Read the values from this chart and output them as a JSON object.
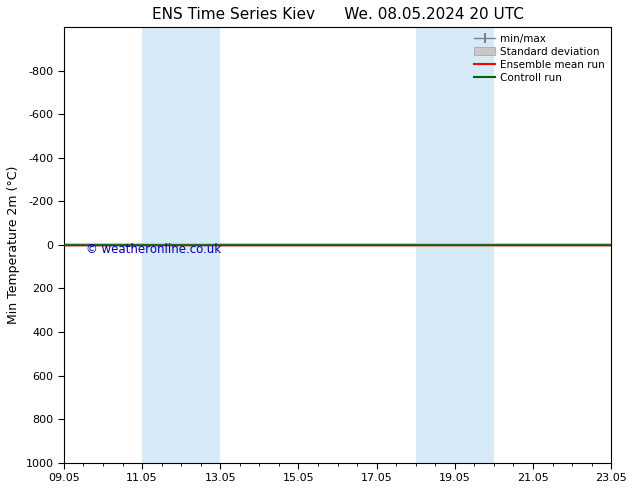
{
  "title1": "ENS Time Series Kiev",
  "title2": "We. 08.05.2024 20 UTC",
  "ylabel": "Min Temperature 2m (°C)",
  "xlim": [
    0,
    14
  ],
  "ylim": [
    1000,
    -1000
  ],
  "yticks": [
    -800,
    -600,
    -400,
    -200,
    0,
    200,
    400,
    600,
    800,
    1000
  ],
  "xtick_labels": [
    "09.05",
    "11.05",
    "13.05",
    "15.05",
    "17.05",
    "19.05",
    "21.05",
    "23.05"
  ],
  "xtick_positions": [
    0,
    2,
    4,
    6,
    8,
    10,
    12,
    14
  ],
  "shaded_bands": [
    [
      2,
      3
    ],
    [
      3,
      4
    ],
    [
      9,
      10
    ],
    [
      10,
      11
    ]
  ],
  "shaded_color": "#d6eaf8",
  "control_run_color": "#006400",
  "ensemble_mean_color": "#ff0000",
  "minmax_color": "#808080",
  "std_dev_color": "#c8c8c8",
  "watermark": "© weatheronline.co.uk",
  "watermark_color": "#0000cc",
  "background_color": "#ffffff",
  "legend_items": [
    "min/max",
    "Standard deviation",
    "Ensemble mean run",
    "Controll run"
  ],
  "legend_colors": [
    "#808080",
    "#c8c8c8",
    "#ff0000",
    "#006400"
  ],
  "figsize": [
    6.34,
    4.9
  ],
  "dpi": 100
}
